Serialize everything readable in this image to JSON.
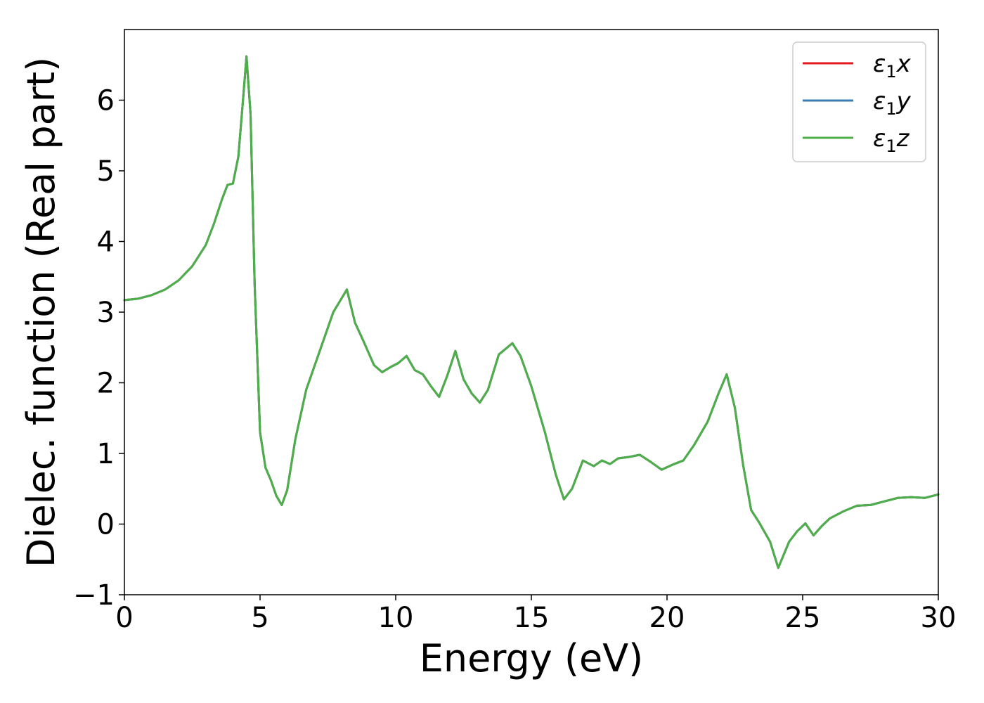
{
  "chart_data": {
    "type": "line",
    "xlabel": "Energy (eV)",
    "ylabel": "Dielec. function (Real part)",
    "xlim": [
      0,
      30
    ],
    "ylim": [
      -1,
      7
    ],
    "xticks": [
      0,
      5,
      10,
      15,
      20,
      25,
      30
    ],
    "xtick_labels": [
      "0",
      "5",
      "10",
      "15",
      "20",
      "25",
      "30"
    ],
    "yticks": [
      -1,
      0,
      1,
      2,
      3,
      4,
      5,
      6
    ],
    "ytick_labels": [
      "−1",
      "0",
      "1",
      "2",
      "3",
      "4",
      "5",
      "6"
    ],
    "grid": false,
    "legend_position": "top-right",
    "series": [
      {
        "name": "ε₁x",
        "legend": {
          "base": "ε",
          "sub": "1",
          "axis": "x"
        },
        "color": "#e41a1c"
      },
      {
        "name": "ε₁y",
        "legend": {
          "base": "ε",
          "sub": "1",
          "axis": "y"
        },
        "color": "#377eb8"
      },
      {
        "name": "ε₁z",
        "legend": {
          "base": "ε",
          "sub": "1",
          "axis": "z"
        },
        "color": "#4daf4a"
      }
    ],
    "x": [
      0,
      0.5,
      1,
      1.5,
      2,
      2.5,
      3,
      3.3,
      3.6,
      3.8,
      4.0,
      4.2,
      4.35,
      4.5,
      4.65,
      4.8,
      5.0,
      5.2,
      5.4,
      5.6,
      5.8,
      6.0,
      6.3,
      6.7,
      7.2,
      7.7,
      8.2,
      8.5,
      8.8,
      9.2,
      9.5,
      9.8,
      10.1,
      10.4,
      10.7,
      11.0,
      11.3,
      11.6,
      11.9,
      12.2,
      12.5,
      12.8,
      13.1,
      13.4,
      13.8,
      14.3,
      14.6,
      15.0,
      15.5,
      15.9,
      16.2,
      16.5,
      16.9,
      17.3,
      17.6,
      17.9,
      18.2,
      18.6,
      19.0,
      19.4,
      19.8,
      20.2,
      20.6,
      21.0,
      21.5,
      21.9,
      22.2,
      22.5,
      22.8,
      23.1,
      23.4,
      23.8,
      24.1,
      24.5,
      24.8,
      25.1,
      25.4,
      25.7,
      26.0,
      26.5,
      27.0,
      27.5,
      28.0,
      28.5,
      29.0,
      29.5,
      30.0
    ],
    "y": [
      3.17,
      3.19,
      3.24,
      3.32,
      3.45,
      3.65,
      3.95,
      4.25,
      4.6,
      4.8,
      4.82,
      5.2,
      5.9,
      6.62,
      5.8,
      3.4,
      1.3,
      0.8,
      0.62,
      0.4,
      0.27,
      0.48,
      1.2,
      1.9,
      2.45,
      3.0,
      3.32,
      2.85,
      2.6,
      2.25,
      2.15,
      2.22,
      2.28,
      2.38,
      2.18,
      2.12,
      1.95,
      1.8,
      2.1,
      2.45,
      2.05,
      1.85,
      1.72,
      1.9,
      2.4,
      2.56,
      2.38,
      1.95,
      1.3,
      0.7,
      0.35,
      0.5,
      0.9,
      0.82,
      0.9,
      0.85,
      0.93,
      0.95,
      0.98,
      0.88,
      0.77,
      0.84,
      0.9,
      1.12,
      1.45,
      1.85,
      2.12,
      1.65,
      0.85,
      0.2,
      0.02,
      -0.25,
      -0.62,
      -0.25,
      -0.1,
      0.01,
      -0.16,
      -0.03,
      0.08,
      0.18,
      0.26,
      0.27,
      0.32,
      0.37,
      0.38,
      0.37,
      0.42
    ]
  }
}
